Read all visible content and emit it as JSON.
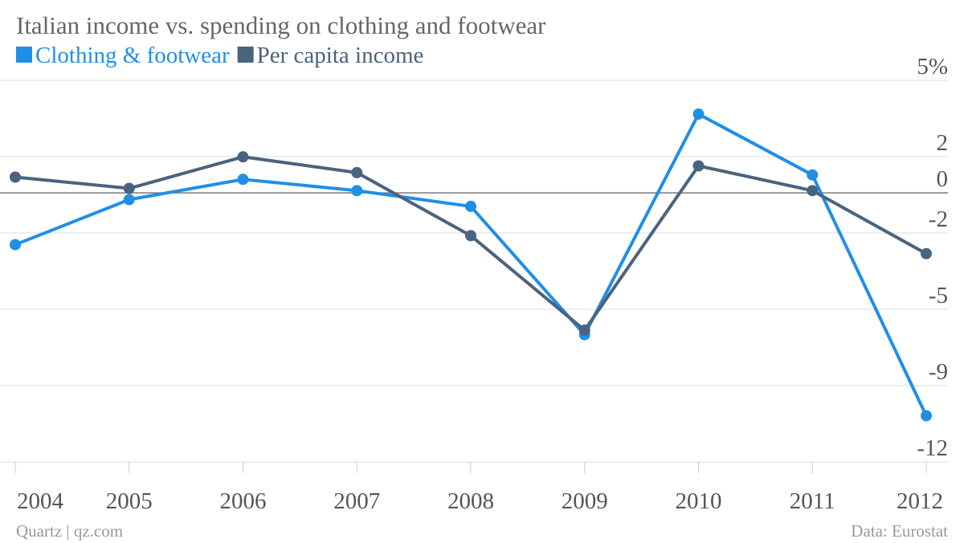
{
  "chart_data": {
    "type": "line",
    "title": "Italian income vs. spending on clothing and footwear",
    "categories": [
      "2004",
      "2005",
      "2006",
      "2007",
      "2008",
      "2009",
      "2010",
      "2011",
      "2012"
    ],
    "series": [
      {
        "name": "Clothing & footwear",
        "color": "#1f8fe6",
        "values": [
          -2.3,
          -0.3,
          0.6,
          0.1,
          -0.6,
          -6.3,
          3.5,
          0.8,
          -9.9
        ]
      },
      {
        "name": "Per capita income",
        "color": "#4a637e",
        "values": [
          0.7,
          0.2,
          1.6,
          0.9,
          -1.9,
          -6.1,
          1.2,
          0.1,
          -2.7
        ]
      }
    ],
    "ylim": [
      -11.95,
      5
    ],
    "yticks": [
      {
        "value": 5,
        "label": "5%"
      },
      {
        "value": 1.61,
        "label": "2"
      },
      0,
      {
        "value": -1.78,
        "label": "-2"
      },
      {
        "value": -5.17,
        "label": "-5"
      },
      {
        "value": -8.56,
        "label": "-9"
      },
      {
        "value": -11.95,
        "label": "-12"
      }
    ],
    "grid": true,
    "source_left": "Quartz | qz.com",
    "source_right": "Data: Eurostat"
  }
}
